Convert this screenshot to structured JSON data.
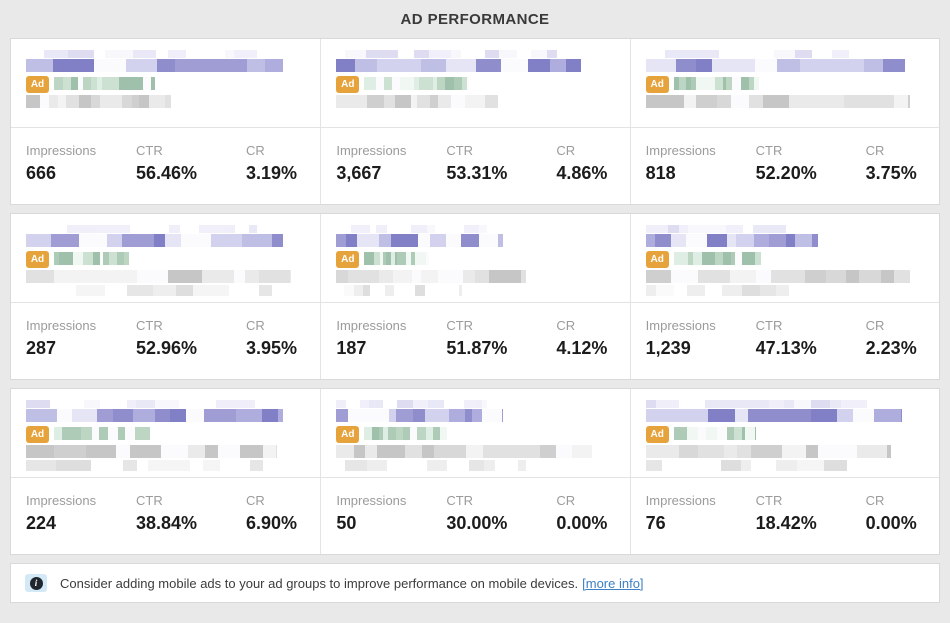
{
  "header": {
    "title": "AD PERFORMANCE"
  },
  "ad_badge_label": "Ad",
  "metric_labels": {
    "impressions": "Impressions",
    "ctr": "CTR",
    "cr": "CR"
  },
  "cards": [
    {
      "impressions": "666",
      "ctr": "56.46%",
      "cr": "3.19%"
    },
    {
      "impressions": "3,667",
      "ctr": "53.31%",
      "cr": "4.86%"
    },
    {
      "impressions": "818",
      "ctr": "52.20%",
      "cr": "3.75%"
    },
    {
      "impressions": "287",
      "ctr": "52.96%",
      "cr": "3.95%"
    },
    {
      "impressions": "187",
      "ctr": "51.87%",
      "cr": "4.12%"
    },
    {
      "impressions": "1,239",
      "ctr": "47.13%",
      "cr": "2.23%"
    },
    {
      "impressions": "224",
      "ctr": "38.84%",
      "cr": "6.90%"
    },
    {
      "impressions": "50",
      "ctr": "30.00%",
      "cr": "0.00%"
    },
    {
      "impressions": "76",
      "ctr": "18.42%",
      "cr": "0.00%"
    }
  ],
  "notice": {
    "icon_glyph": "i",
    "text": "Consider adding mobile ads to your ad groups to improve performance on mobile devices.",
    "link_label": "[more info]"
  },
  "colors": {
    "page_background": "#e9e9e9",
    "panel_background": "#ffffff",
    "panel_border": "#d9d9d9",
    "ad_badge_gold": "#e7a33b",
    "headline_purple": "#8583c7",
    "url_green": "#9fc0aa",
    "label_gray": "#9b9b9b",
    "value_black": "#1c1c1c",
    "link_blue": "#3d80c4",
    "info_chip_blue": "#d3e9f5"
  }
}
